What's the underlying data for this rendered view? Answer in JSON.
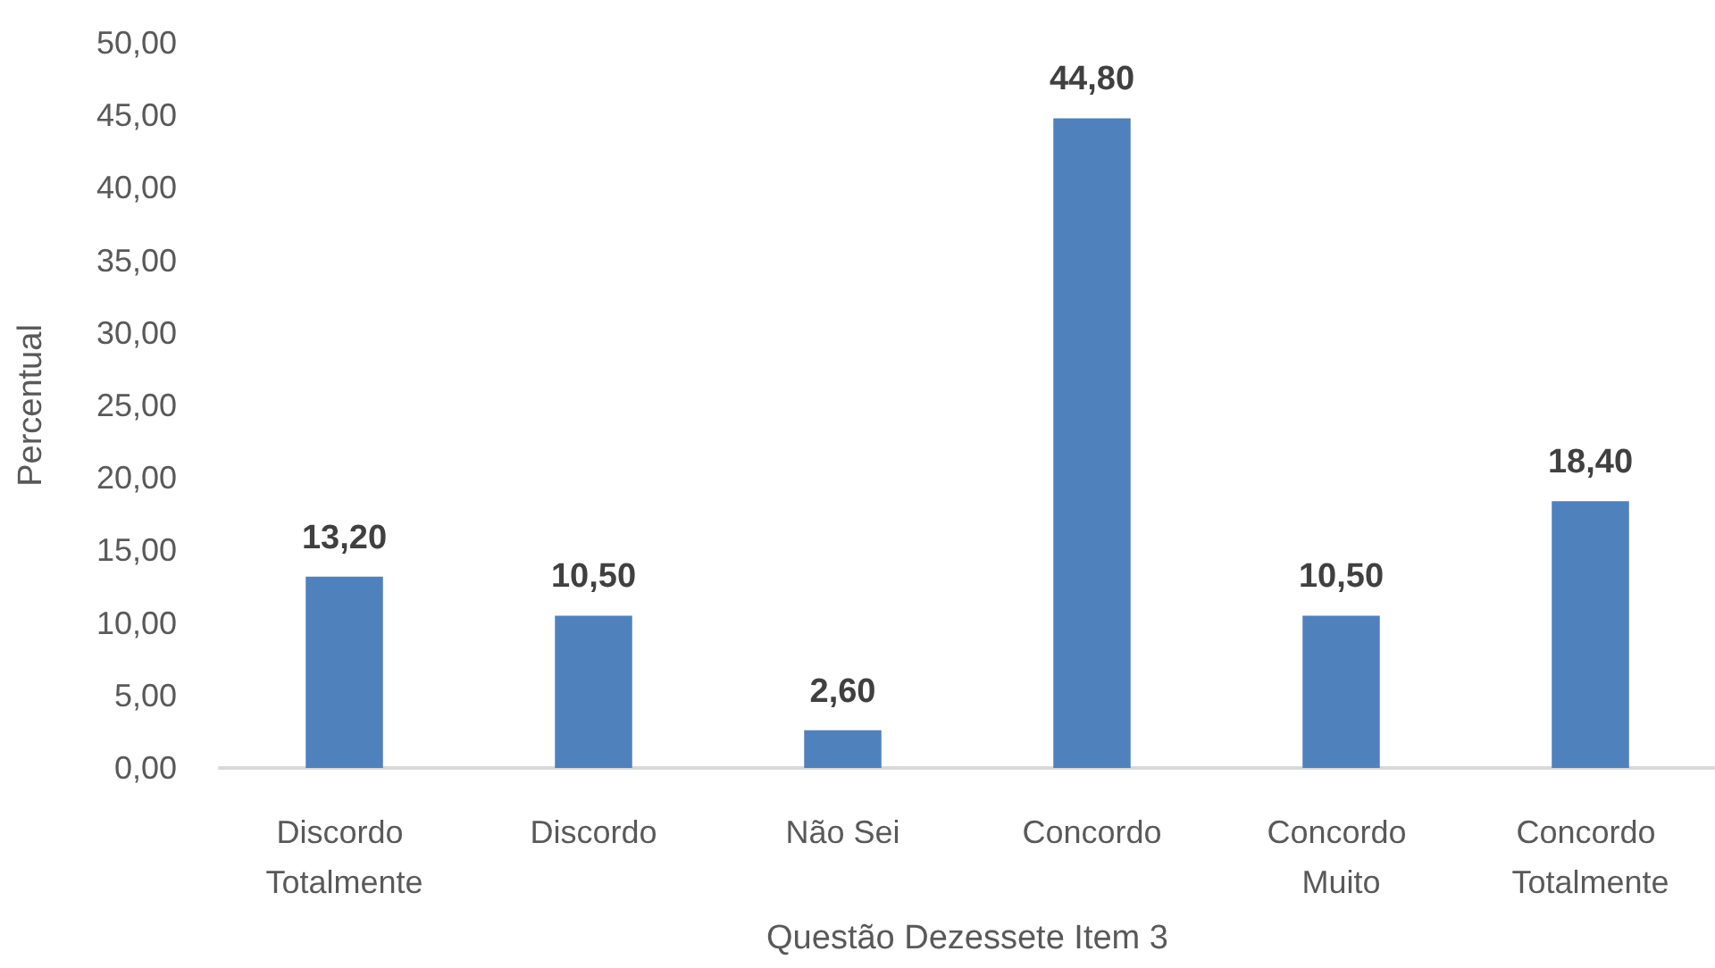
{
  "chart_data": {
    "type": "bar",
    "xlabel": "Questão Dezessete Item 3",
    "ylabel": "Percentual",
    "categories": [
      "Discordo Totalmente",
      "Discordo",
      "Não Sei",
      "Concordo",
      "Concordo Muito",
      "Concordo Totalmente"
    ],
    "values": [
      13.2,
      10.5,
      2.6,
      44.8,
      10.5,
      18.4
    ],
    "color": "#4f81bd",
    "value_labels": [
      "13,20",
      "10,50",
      "2,60",
      "44,80",
      "10,50",
      "18,40"
    ],
    "ylim": [
      0,
      50
    ],
    "yticks": [
      {
        "value": 0,
        "label": "0,00"
      },
      {
        "value": 5,
        "label": "5,00"
      },
      {
        "value": 10,
        "label": "10,00"
      },
      {
        "value": 15,
        "label": "15,00"
      },
      {
        "value": 20,
        "label": "20,00"
      },
      {
        "value": 25,
        "label": "25,00"
      },
      {
        "value": 30,
        "label": "30,00"
      },
      {
        "value": 35,
        "label": "35,00"
      },
      {
        "value": 40,
        "label": "40,00"
      },
      {
        "value": 45,
        "label": "45,00"
      },
      {
        "value": 50,
        "label": "50,00"
      }
    ],
    "grid": false
  }
}
